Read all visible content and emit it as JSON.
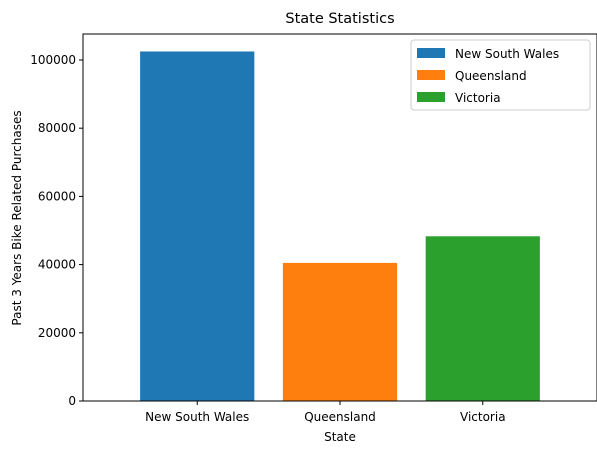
{
  "chart_data": {
    "type": "bar",
    "title": "State Statistics",
    "xlabel": "State",
    "ylabel": "Past 3 Years Bike Related Purchases",
    "categories": [
      "New South Wales",
      "Queensland",
      "Victoria"
    ],
    "values": [
      102500,
      40500,
      48300
    ],
    "colors": [
      "#1f77b4",
      "#ff7f0e",
      "#2ca02c"
    ],
    "ylim": [
      0,
      107625
    ],
    "yticks": [
      0,
      20000,
      40000,
      60000,
      80000,
      100000
    ],
    "grid": false,
    "legend": {
      "position": "top-right",
      "entries": [
        "New South Wales",
        "Queensland",
        "Victoria"
      ]
    }
  }
}
